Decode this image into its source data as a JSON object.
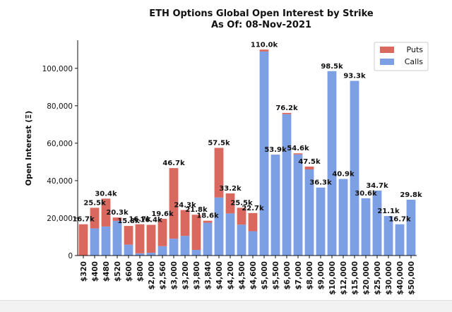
{
  "chart_data": {
    "type": "bar",
    "stacked": true,
    "title": "ETH Options Global Open Interest by Strike",
    "subtitle": "As Of: 08-Nov-2021",
    "ylabel": "Open Interest (Ξ)",
    "xlabel": "",
    "ylim": [
      0,
      115000
    ],
    "yticks": [
      0,
      20000,
      40000,
      60000,
      80000,
      100000
    ],
    "ytick_labels": [
      "0",
      "20,000",
      "40,000",
      "60,000",
      "80,000",
      "100,000"
    ],
    "legend_position": "top-right",
    "colors": {
      "Calls": "#7d9fe3",
      "Puts": "#d9685f"
    },
    "categories": [
      "$320",
      "$400",
      "$480",
      "$520",
      "$600",
      "$800",
      "$2,000",
      "$2,560",
      "$3,000",
      "$3,200",
      "$3,800",
      "$3,840",
      "$4,000",
      "$4,200",
      "$4,500",
      "$4,600",
      "$5,000",
      "$5,500",
      "$6,000",
      "$7,000",
      "$8,000",
      "$9,000",
      "$10,000",
      "$12,000",
      "$15,000",
      "$20,000",
      "$25,000",
      "$30,000",
      "$40,000",
      "$50,000"
    ],
    "x_tick_labels": [
      "$320",
      "$400",
      "$480",
      "$520",
      "$600",
      "$800",
      "$2,000",
      "$2,560",
      "$3,000",
      "$3,200",
      "$3,800",
      "$3,840",
      "$4,000",
      "$4,200",
      "$4,500",
      "$4,600",
      "$5,000",
      "$5,500",
      "$6,000",
      "$7,000",
      "$8,000",
      "$9,000",
      "$10,000",
      "$12,000",
      "$15,000",
      "$20,000",
      "$25,000",
      "$30,000",
      "$40,000",
      "$50,000"
    ],
    "series": [
      {
        "name": "Calls",
        "values": [
          0,
          14500,
          15500,
          18500,
          5800,
          1200,
          1500,
          5000,
          9000,
          10500,
          3000,
          17500,
          31000,
          22500,
          16500,
          13000,
          109000,
          53900,
          75500,
          54000,
          46000,
          36300,
          98500,
          40900,
          93300,
          30600,
          34700,
          21100,
          16700,
          29800
        ]
      },
      {
        "name": "Puts",
        "values": [
          16700,
          11000,
          14900,
          1800,
          10000,
          15500,
          14900,
          14600,
          37700,
          13800,
          18800,
          1100,
          26500,
          10700,
          9000,
          9700,
          1000,
          0,
          700,
          600,
          1500,
          0,
          0,
          0,
          0,
          0,
          0,
          0,
          0,
          0
        ]
      }
    ],
    "data_labels": [
      "16.7k",
      "25.5k",
      "30.4k",
      "20.3k",
      "15.8k",
      "16.7k",
      "16.4k",
      "19.6k",
      "46.7k",
      "24.3k",
      "21.8k",
      "18.6k",
      "57.5k",
      "33.2k",
      "25.5k",
      "22.7k",
      "110.0k",
      "53.9k",
      "76.2k",
      "54.6k",
      "47.5k",
      "36.3k",
      "98.5k",
      "40.9k",
      "93.3k",
      "30.6k",
      "34.7k",
      "21.1k",
      "16.7k",
      "29.8k"
    ]
  }
}
